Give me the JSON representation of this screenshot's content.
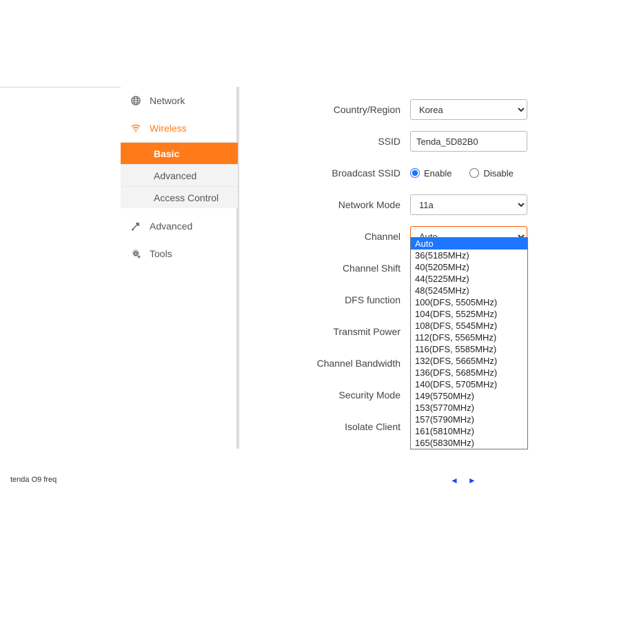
{
  "sidebar": {
    "network": {
      "label": "Network"
    },
    "wireless": {
      "label": "Wireless",
      "items": [
        {
          "label": "Basic"
        },
        {
          "label": "Advanced"
        },
        {
          "label": "Access Control"
        }
      ]
    },
    "advanced": {
      "label": "Advanced"
    },
    "tools": {
      "label": "Tools"
    }
  },
  "form": {
    "country_label": "Country/Region",
    "country_value": "Korea",
    "ssid_label": "SSID",
    "ssid_value": "Tenda_5D82B0",
    "broadcast_label": "Broadcast SSID",
    "broadcast_enable": "Enable",
    "broadcast_disable": "Disable",
    "netmode_label": "Network Mode",
    "netmode_value": "11a",
    "channel_label": "Channel",
    "channel_value": "Auto",
    "channel_shift_label": "Channel Shift",
    "dfs_label": "DFS function",
    "tx_power_label": "Transmit Power",
    "chan_bw_label": "Channel Bandwidth",
    "sec_mode_label": "Security Mode",
    "isolate_label": "Isolate Client"
  },
  "channel_options": [
    "Auto",
    "36(5185MHz)",
    "40(5205MHz)",
    "44(5225MHz)",
    "48(5245MHz)",
    "100(DFS, 5505MHz)",
    "104(DFS, 5525MHz)",
    "108(DFS, 5545MHz)",
    "112(DFS, 5565MHz)",
    "116(DFS, 5585MHz)",
    "132(DFS, 5665MHz)",
    "136(DFS, 5685MHz)",
    "140(DFS, 5705MHz)",
    "149(5750MHz)",
    "153(5770MHz)",
    "157(5790MHz)",
    "161(5810MHz)",
    "165(5830MHz)"
  ],
  "caption": "tenda O9 freq",
  "colors": {
    "accent": "#ff7b1a",
    "select_highlight": "#1e76ff",
    "divider": "#dcdcdc",
    "border": "#b9b9b9",
    "active_select_border": "#ff5a00"
  }
}
